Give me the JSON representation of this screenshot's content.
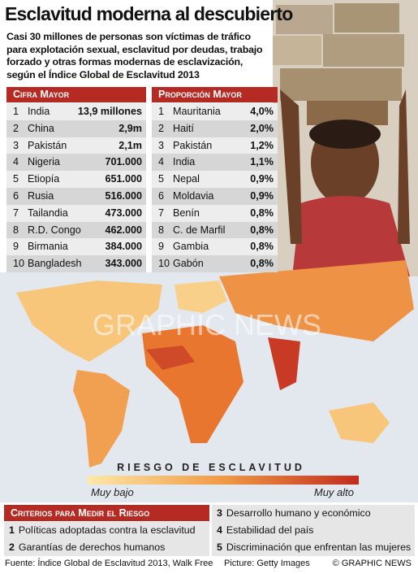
{
  "header": {
    "title": "Esclavitud moderna al descubierto",
    "subtitle": [
      "Casi 30 millones de personas son víctimas de tráfico",
      "para explotación sexual, esclavitud por deudas, trabajo",
      "forzado y otras formas modernas de esclavización,",
      "según el Índice Global de Esclavitud 2013"
    ]
  },
  "tables": [
    {
      "heading": "Cifra Mayor",
      "rows": [
        [
          1,
          "India",
          "13,9 millones"
        ],
        [
          2,
          "China",
          "2,9m"
        ],
        [
          3,
          "Pakistán",
          "2,1m"
        ],
        [
          4,
          "Nigeria",
          "701.000"
        ],
        [
          5,
          "Etiopía",
          "651.000"
        ],
        [
          6,
          "Rusia",
          "516.000"
        ],
        [
          7,
          "Tailandia",
          "473.000"
        ],
        [
          8,
          "R.D. Congo",
          "462.000"
        ],
        [
          9,
          "Birmania",
          "384.000"
        ],
        [
          10,
          "Bangladesh",
          "343.000"
        ]
      ]
    },
    {
      "heading": "Proporción Mayor",
      "rows": [
        [
          1,
          "Mauritania",
          "4,0%"
        ],
        [
          2,
          "Haití",
          "2,0%"
        ],
        [
          3,
          "Pakistán",
          "1,2%"
        ],
        [
          4,
          "India",
          "1,1%"
        ],
        [
          5,
          "Nepal",
          "0,9%"
        ],
        [
          6,
          "Moldavia",
          "0,9%"
        ],
        [
          7,
          "Benín",
          "0,8%"
        ],
        [
          8,
          "C. de Marfil",
          "0,8%"
        ],
        [
          9,
          "Gambia",
          "0,8%"
        ],
        [
          10,
          "Gabón",
          "0,8%"
        ]
      ]
    }
  ],
  "map": {
    "watermark": "GRAPHIC NEWS",
    "legend": {
      "title": "RIESGO DE ESCLAVITUD",
      "low": "Muy bajo",
      "high": "Muy alto"
    }
  },
  "criteria": {
    "heading": "Criterios para Medir el Riesgo",
    "items": [
      [
        1,
        "Políticas adoptadas contra la esclavitud"
      ],
      [
        2,
        "Garantías de derechos humanos"
      ],
      [
        3,
        "Desarrollo humano y económico"
      ],
      [
        4,
        "Estabilidad del país"
      ],
      [
        5,
        "Discriminación que enfrentan las mujeres"
      ]
    ]
  },
  "footer": {
    "source": "Fuente: Índice Global de Esclavitud 2013, Walk Free",
    "picture": "Picture: Getty Images",
    "credit": "© GRAPHIC NEWS"
  }
}
